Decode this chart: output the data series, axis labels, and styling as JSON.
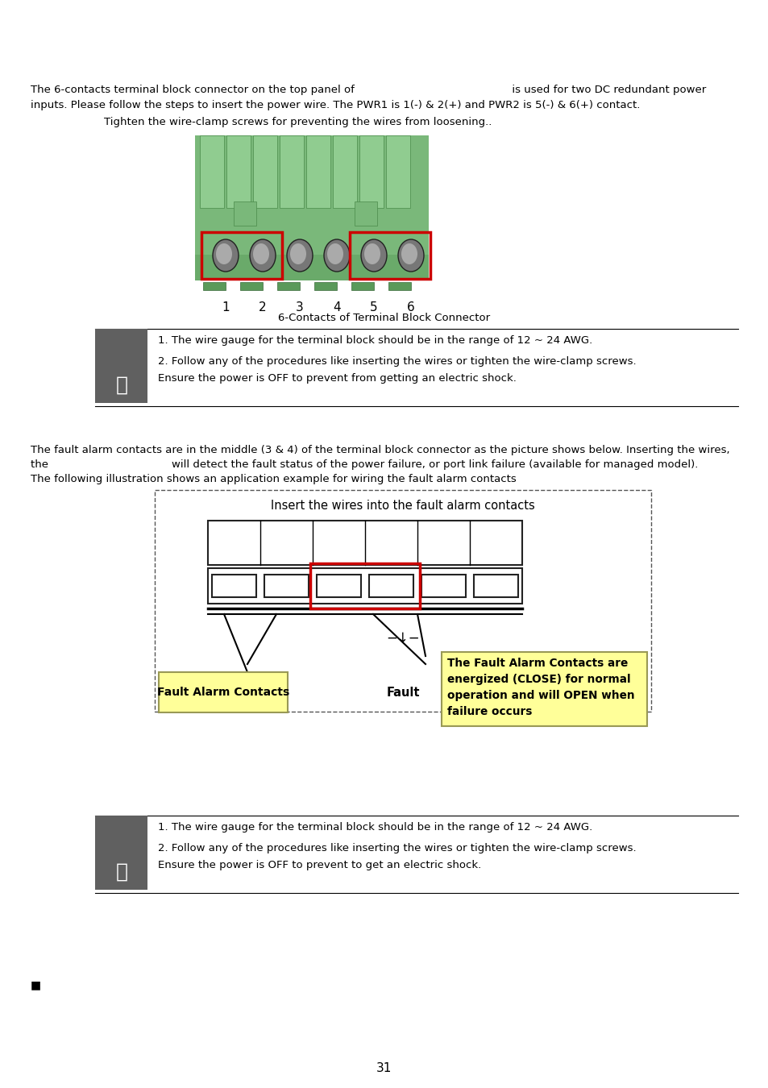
{
  "bg_color": "#ffffff",
  "text1": "The 6-contacts terminal block connector on the top panel of                                              is used for two DC redundant power",
  "text2": "inputs. Please follow the steps to insert the power wire. The PWR1 is 1(-) & 2(+) and PWR2 is 5(-) & 6(+) contact.",
  "text3": "Tighten the wire-clamp screws for preventing the wires from loosening..",
  "caption1": "6-Contacts of Terminal Block Connector",
  "note1_line1": "1. The wire gauge for the terminal block should be in the range of 12 ~ 24 AWG.",
  "note1_line2": "2. Follow any of the procedures like inserting the wires or tighten the wire-clamp screws.",
  "note1_line3": "Ensure the power is OFF to prevent from getting an electric shock.",
  "fault_intro1": "The fault alarm contacts are in the middle (3 & 4) of the terminal block connector as the picture shows below. Inserting the wires,",
  "fault_intro2": "the                                    will detect the fault status of the power failure, or port link failure (available for managed model).",
  "fault_intro3": "The following illustration shows an application example for wiring the fault alarm contacts",
  "fault_box_label": "Insert the wires into the fault alarm contacts",
  "fault_label1": "Fault Alarm Contacts",
  "fault_label2": "Fault",
  "fault_callout": "The Fault Alarm Contacts are\nenergized (CLOSE) for normal\noperation and will OPEN when\nfailure occurs",
  "note2_line1": "1. The wire gauge for the terminal block should be in the range of 12 ~ 24 AWG.",
  "note2_line2": "2. Follow any of the procedures like inserting the wires or tighten the wire-clamp screws.",
  "note2_line3": "Ensure the power is OFF to prevent to get an electric shock.",
  "page_number": "31",
  "connector_numbers": [
    "1",
    "2",
    "3",
    "4",
    "5",
    "6"
  ],
  "yellow_color": "#ffff99",
  "note_bg": "#606060"
}
